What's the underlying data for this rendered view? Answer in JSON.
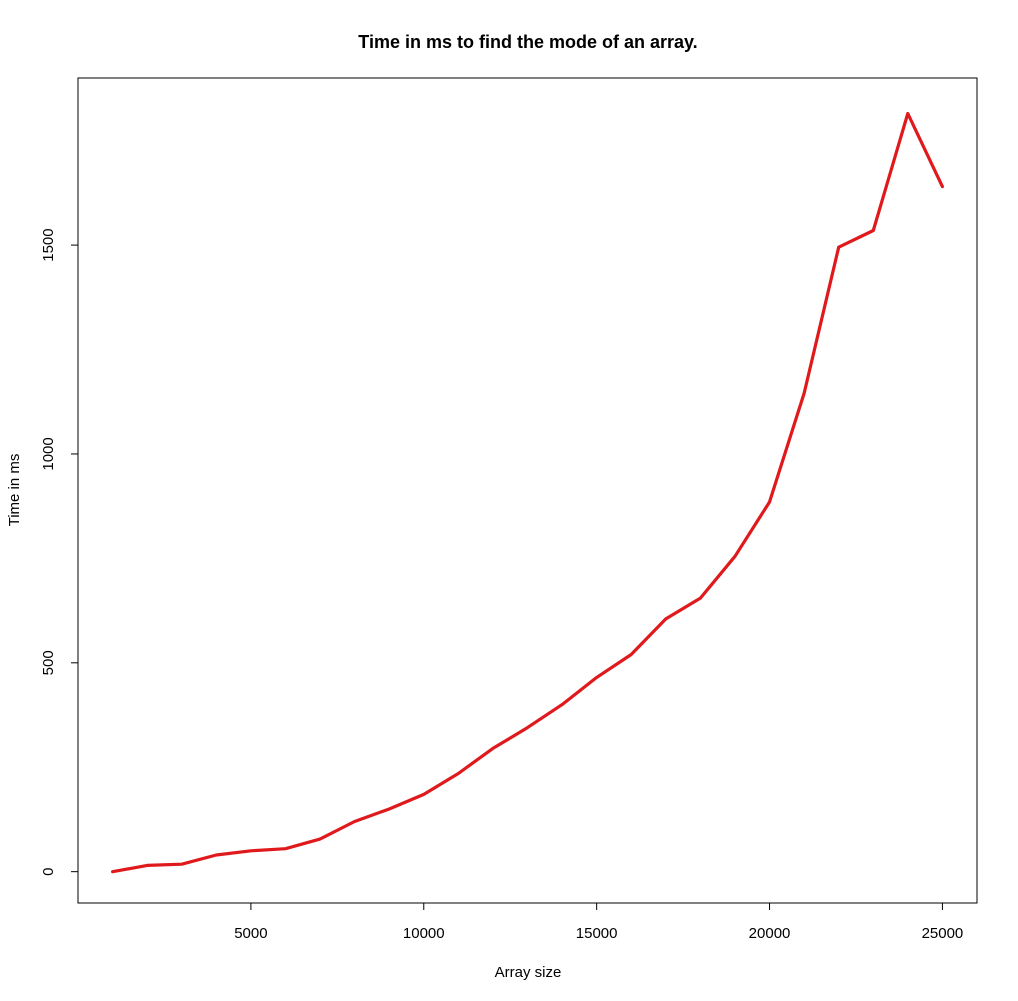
{
  "chart_data": {
    "type": "line",
    "title": "Time in ms to find the mode of an array.",
    "xlabel": "Array size",
    "ylabel": "Time in ms",
    "xlim": [
      0,
      26000
    ],
    "ylim": [
      -75,
      1900
    ],
    "x_ticks": [
      5000,
      10000,
      15000,
      20000,
      25000
    ],
    "y_ticks": [
      0,
      500,
      1000,
      1500
    ],
    "grid": false,
    "series": [
      {
        "color": "#e0191c",
        "x": [
          1000,
          2000,
          3000,
          4000,
          5000,
          6000,
          7000,
          8000,
          9000,
          10000,
          11000,
          12000,
          13000,
          14000,
          15000,
          16000,
          17000,
          18000,
          19000,
          20000,
          21000,
          22000,
          23000,
          24000,
          25000
        ],
        "y": [
          0,
          15,
          18,
          40,
          50,
          55,
          78,
          120,
          150,
          185,
          235,
          295,
          345,
          400,
          465,
          520,
          605,
          655,
          755,
          885,
          1145,
          1495,
          1535,
          1815,
          1640
        ]
      }
    ]
  }
}
